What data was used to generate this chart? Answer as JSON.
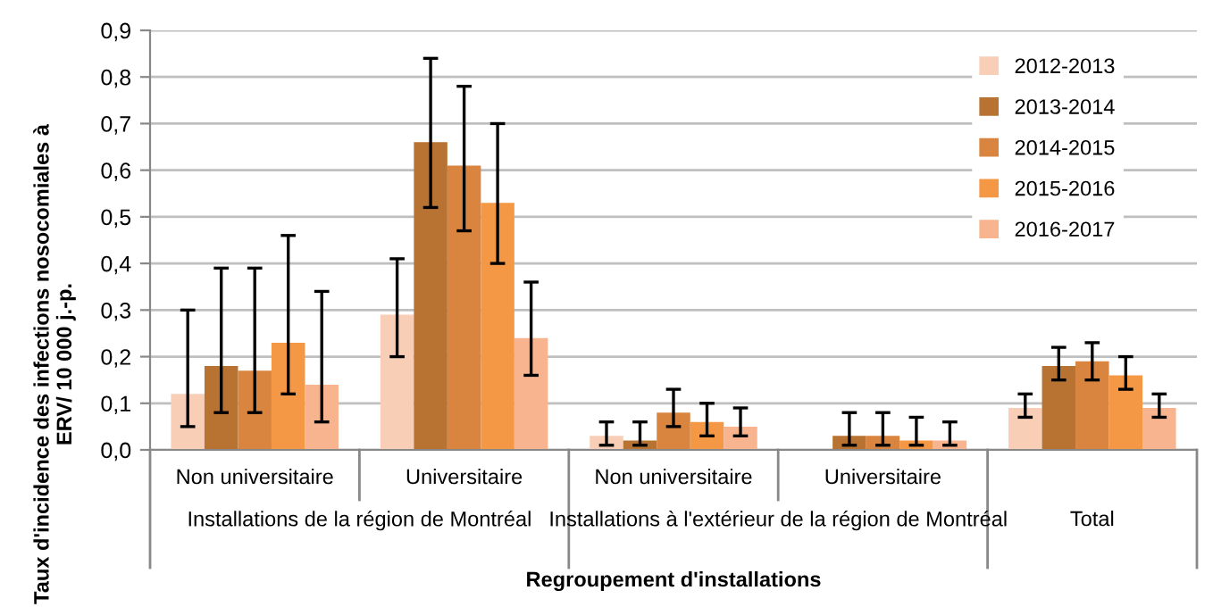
{
  "chart_data": {
    "type": "bar",
    "xlabel": "Regroupement d'installations",
    "ylabel": "Taux d'incidence des infections nosocomiales à ERV/ 10 000 j.-p.",
    "categories": [
      "Non universitaire",
      "Universitaire",
      "Non universitaire",
      "Universitaire",
      null
    ],
    "annotations": [
      "Installations de la région de Montréal",
      "Installations à l'extérieur de la région de Montréal",
      "Total"
    ],
    "series": [
      {
        "name": "2012-2013",
        "color": "#f9ceb6",
        "values": [
          0.12,
          0.29,
          0.03,
          0,
          0.09
        ],
        "errors": [
          [
            0.05,
            0.3
          ],
          [
            0.2,
            0.41
          ],
          [
            0.01,
            0.06
          ],
          null,
          [
            0.07,
            0.12
          ]
        ]
      },
      {
        "name": "2013-2014",
        "color": "#b87333",
        "values": [
          0.18,
          0.66,
          0.02,
          0.03,
          0.18
        ],
        "errors": [
          [
            0.08,
            0.39
          ],
          [
            0.52,
            0.84
          ],
          [
            0.01,
            0.06
          ],
          [
            0.01,
            0.08
          ],
          [
            0.15,
            0.22
          ]
        ]
      },
      {
        "name": "2014-2015",
        "color": "#d9843f",
        "values": [
          0.17,
          0.61,
          0.08,
          0.03,
          0.19
        ],
        "errors": [
          [
            0.08,
            0.39
          ],
          [
            0.47,
            0.78
          ],
          [
            0.05,
            0.13
          ],
          [
            0.01,
            0.08
          ],
          [
            0.15,
            0.23
          ]
        ]
      },
      {
        "name": "2015-2016",
        "color": "#f59846",
        "values": [
          0.23,
          0.53,
          0.06,
          0.02,
          0.16
        ],
        "errors": [
          [
            0.12,
            0.46
          ],
          [
            0.4,
            0.7
          ],
          [
            0.03,
            0.1
          ],
          [
            0.01,
            0.07
          ],
          [
            0.13,
            0.2
          ]
        ]
      },
      {
        "name": "2016-2017",
        "color": "#f7b48f",
        "values": [
          0.14,
          0.24,
          0.05,
          0.02,
          0.09
        ],
        "errors": [
          [
            0.06,
            0.34
          ],
          [
            0.16,
            0.36
          ],
          [
            0.03,
            0.09
          ],
          [
            0.01,
            0.06
          ],
          [
            0.07,
            0.12
          ]
        ]
      }
    ],
    "ylim": [
      0,
      0.9
    ],
    "yticks": [
      {
        "value": 0,
        "label": "0,0"
      },
      {
        "value": 0.1,
        "label": "0,1"
      },
      {
        "value": 0.2,
        "label": "0,2"
      },
      {
        "value": 0.3,
        "label": "0,3"
      },
      {
        "value": 0.4,
        "label": "0,4"
      },
      {
        "value": 0.5,
        "label": "0,5"
      },
      {
        "value": 0.6,
        "label": "0,6"
      },
      {
        "value": 0.7,
        "label": "0,7"
      },
      {
        "value": 0.8,
        "label": "0,8"
      },
      {
        "value": 0.9,
        "label": "0,9"
      }
    ],
    "grid": "y",
    "legend": "top right"
  }
}
